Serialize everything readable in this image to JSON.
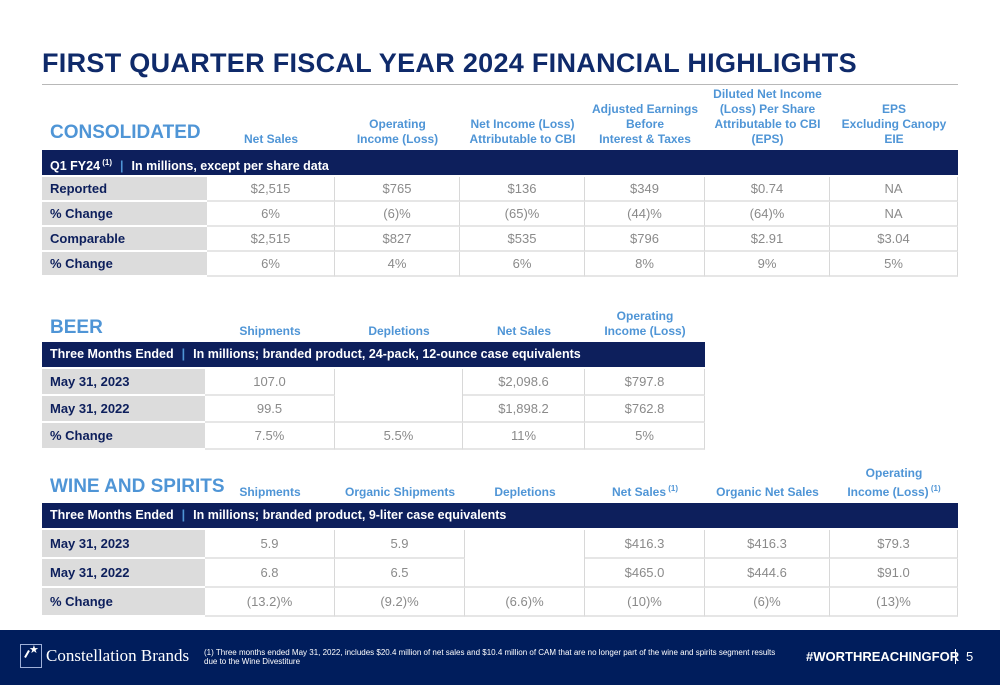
{
  "title": "FIRST QUARTER FISCAL YEAR 2024 FINANCIAL HIGHLIGHTS",
  "consolidated": {
    "title": "CONSOLIDATED",
    "columns": [
      "Net Sales",
      "Operating\nIncome (Loss)",
      "Net Income (Loss)\nAttributable to CBI",
      "Adjusted Earnings\nBefore\nInterest & Taxes",
      "Diluted Net Income\n(Loss) Per Share\nAttributable to CBI (EPS)",
      "EPS\nExcluding Canopy EIE"
    ],
    "bar_left": "Q1 FY24",
    "bar_sup": "(1)",
    "bar_right": "In millions, except per share data",
    "rows": [
      {
        "label": "Reported",
        "values": [
          "$2,515",
          "$765",
          "$136",
          "$349",
          "$0.74",
          "NA"
        ]
      },
      {
        "label": "% Change",
        "values": [
          "6%",
          "(6)%",
          "(65)%",
          "(44)%",
          "(64)%",
          "NA"
        ]
      },
      {
        "label": "Comparable",
        "values": [
          "$2,515",
          "$827",
          "$535",
          "$796",
          "$2.91",
          "$3.04"
        ]
      },
      {
        "label": "% Change",
        "values": [
          "6%",
          "4%",
          "6%",
          "8%",
          "9%",
          "5%"
        ]
      }
    ]
  },
  "beer": {
    "title": "BEER",
    "columns": [
      "Shipments",
      "Depletions",
      "Net Sales",
      "Operating\nIncome (Loss)"
    ],
    "bar_left": "Three Months Ended",
    "bar_right": "In millions; branded product, 24-pack, 12-ounce case equivalents",
    "rows": [
      {
        "label": "May 31, 2023",
        "values": [
          "107.0",
          "",
          "$2,098.6",
          "$797.8"
        ]
      },
      {
        "label": "May 31, 2022",
        "values": [
          "99.5",
          "",
          "$1,898.2",
          "$762.8"
        ]
      },
      {
        "label": "% Change",
        "values": [
          "7.5%",
          "5.5%",
          "11%",
          "5%"
        ]
      }
    ]
  },
  "wine": {
    "title": "WINE AND SPIRITS",
    "columns": [
      "Shipments",
      "Organic Shipments",
      "Depletions",
      "Net Sales|(1)",
      "Organic Net Sales",
      "Operating\nIncome (Loss)|(1)"
    ],
    "bar_left": "Three Months Ended",
    "bar_right": "In millions; branded product, 9-liter case equivalents",
    "rows": [
      {
        "label": "May 31, 2023",
        "values": [
          "5.9",
          "5.9",
          "",
          "$416.3",
          "$416.3",
          "$79.3"
        ]
      },
      {
        "label": "May 31, 2022",
        "values": [
          "6.8",
          "6.5",
          "",
          "$465.0",
          "$444.6",
          "$91.0"
        ]
      },
      {
        "label": "% Change",
        "values": [
          "(13.2)%",
          "(9.2)%",
          "(6.6)%",
          "(10)%",
          "(6)%",
          "(13)%"
        ]
      }
    ]
  },
  "footer": {
    "brand": "Constellation Brands",
    "footnote": "(1)  Three months ended May 31, 2022, includes $20.4 million of net sales and $10.4 million of CAM that are no longer part of the wine and spirits segment results due to the Wine Divestiture",
    "hashtag": "#WORTHREACHINGFOR",
    "page": "5"
  }
}
